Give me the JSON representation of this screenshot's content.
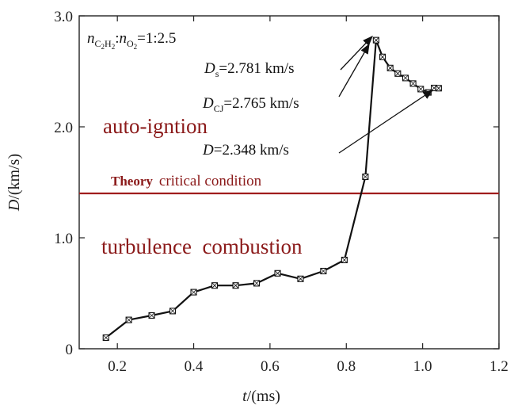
{
  "chart_data": {
    "type": "line",
    "xlabel_var": "t",
    "xlabel_unit": "/(ms)",
    "ylabel_var": "D",
    "ylabel_unit": "/(km/s)",
    "xlim": [
      0.1,
      1.2
    ],
    "ylim": [
      0.0,
      3.0
    ],
    "x_ticks": [
      "0.2",
      "0.4",
      "0.6",
      "0.8",
      "1.0",
      "1.2"
    ],
    "y_ticks": [
      "0",
      "1.0",
      "2.0",
      "3.0"
    ],
    "grid": false,
    "series": [
      {
        "x": [
          0.17,
          0.23,
          0.29,
          0.345,
          0.4,
          0.455,
          0.51,
          0.565,
          0.62,
          0.68,
          0.74,
          0.795,
          0.85,
          0.878,
          0.895,
          0.915,
          0.935,
          0.955,
          0.975,
          0.995,
          1.015,
          1.03,
          1.042
        ],
        "y": [
          0.1,
          0.26,
          0.3,
          0.34,
          0.51,
          0.57,
          0.57,
          0.59,
          0.68,
          0.63,
          0.7,
          0.8,
          1.55,
          2.781,
          2.63,
          2.53,
          2.48,
          2.44,
          2.39,
          2.34,
          2.31,
          2.35,
          2.348
        ]
      }
    ],
    "threshold": {
      "y": 1.4,
      "color": "#a01c1c"
    },
    "title_ratio_prefix": "n",
    "title_ratio_sub1": "C",
    "title_ratio_sub1b": "2",
    "title_ratio_sub1c": "H",
    "title_ratio_sub1d": "2",
    "title_ratio_colon": ":",
    "title_ratio_prefix2": "n",
    "title_ratio_sub2a": "O",
    "title_ratio_sub2b": "2",
    "title_ratio_value": "=1:2.5",
    "annotations": [
      {
        "var": "D",
        "sub": "s",
        "text": "=2.781 km/s"
      },
      {
        "var": "D",
        "sub": "CJ",
        "text": "=2.765 km/s"
      },
      {
        "var": "D",
        "sub": "",
        "text": "=2.348 km/s"
      }
    ],
    "region_upper": "auto-igntion",
    "region_lower": "turbulence  combustion",
    "theory_bold": "Theory",
    "theory_rest": "critical condition",
    "line_color": "#111111",
    "region_color": "#8b1a1a"
  }
}
